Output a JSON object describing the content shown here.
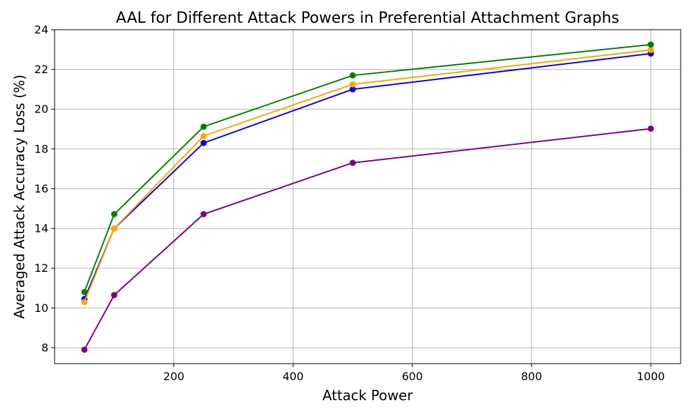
{
  "chart_data": {
    "type": "line",
    "title": "AAL for Different Attack Powers in Preferential Attachment Graphs",
    "xlabel": "Attack Power",
    "ylabel": "Averaged Attack Accuracy Loss (%)",
    "x": [
      50,
      100,
      250,
      500,
      1000
    ],
    "xlim": [
      0,
      1050
    ],
    "ylim": [
      7.2,
      24
    ],
    "xticks": [
      200,
      400,
      600,
      800,
      1000
    ],
    "yticks": [
      8,
      10,
      12,
      14,
      16,
      18,
      20,
      22,
      24
    ],
    "grid": true,
    "series": [
      {
        "color": "#0000ff",
        "values": [
          10.45,
          14.0,
          18.3,
          21.0,
          22.8
        ]
      },
      {
        "color": "#ffa500",
        "values": [
          10.3,
          14.0,
          18.65,
          21.25,
          22.98
        ]
      },
      {
        "color": "#008000",
        "values": [
          10.8,
          14.72,
          19.12,
          21.7,
          23.25
        ]
      },
      {
        "color": "#800080",
        "values": [
          7.9,
          10.65,
          14.72,
          17.3,
          19.02
        ]
      }
    ]
  }
}
